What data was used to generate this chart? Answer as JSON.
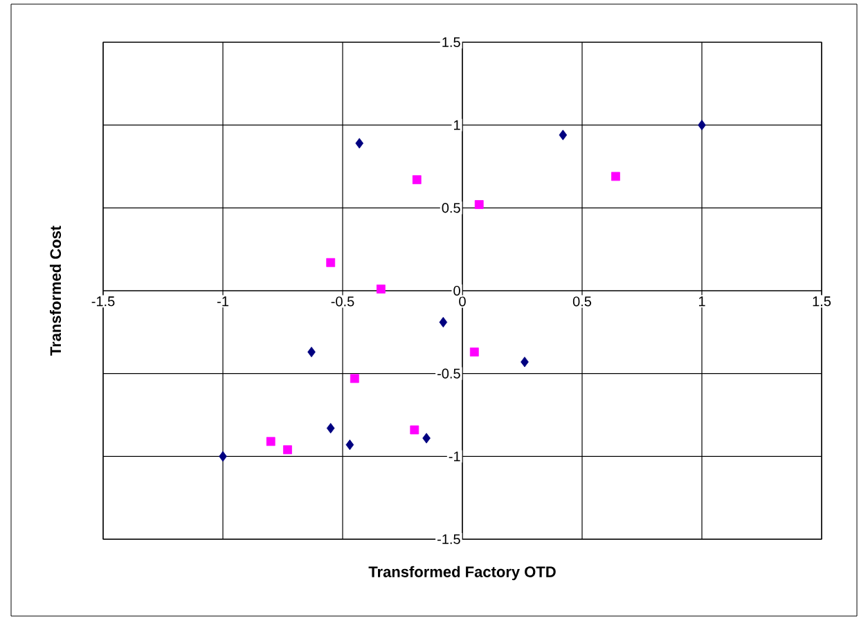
{
  "chart_data": {
    "type": "scatter",
    "xlabel": "Transformed Factory OTD",
    "ylabel": "Transformed Cost",
    "xlim": [
      -1.5,
      1.5
    ],
    "ylim": [
      -1.5,
      1.5
    ],
    "xticks": [
      -1.5,
      -1,
      -0.5,
      0,
      0.5,
      1,
      1.5
    ],
    "yticks": [
      -1.5,
      -1,
      -0.5,
      0,
      0.5,
      1,
      1.5
    ],
    "grid": true,
    "series": [
      {
        "color": "#000080",
        "marker": "diamond",
        "x": [
          -1,
          -0.63,
          -0.55,
          -0.47,
          -0.43,
          -0.15,
          -0.08,
          0.26,
          0.42,
          1
        ],
        "values": [
          -1,
          -0.37,
          -0.83,
          -0.93,
          0.89,
          -0.89,
          -0.19,
          -0.43,
          0.94,
          1
        ]
      },
      {
        "color": "#ff00ff",
        "marker": "square",
        "x": [
          -0.8,
          -0.73,
          -0.55,
          -0.45,
          -0.34,
          -0.2,
          -0.19,
          0.05,
          0.07,
          0.64
        ],
        "values": [
          -0.91,
          -0.96,
          0.17,
          -0.53,
          0.01,
          -0.84,
          0.67,
          -0.37,
          0.52,
          0.69
        ]
      }
    ]
  }
}
